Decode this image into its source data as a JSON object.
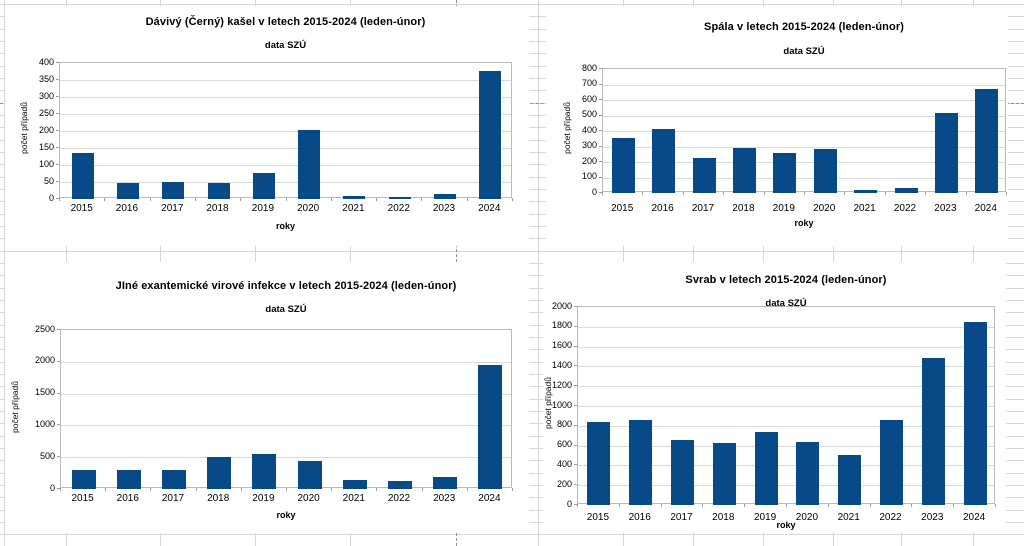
{
  "app": {
    "kind": "spreadsheet with embedded charts",
    "colors": {
      "bar": "#084a87",
      "sheet_grid": "#d6d6d6",
      "page_break": "#8f8f8f",
      "plot_border": "#b9b9b9",
      "chart_gridline": "#d9d9d9",
      "text": "#000000"
    }
  },
  "chart_data": [
    {
      "type": "bar",
      "title": "Dávivý (Černý) kašel v letech 2015-2024 (leden-únor)",
      "subtitle": "data SZÚ",
      "xlabel": "roky",
      "ylabel": "počet případů",
      "categories": [
        "2015",
        "2016",
        "2017",
        "2018",
        "2019",
        "2020",
        "2021",
        "2022",
        "2023",
        "2024"
      ],
      "values": [
        135,
        48,
        49,
        46,
        78,
        203,
        10,
        7,
        14,
        378
      ],
      "ylim": [
        0,
        400
      ],
      "ytick_step": 50,
      "grid": true,
      "legend": "none",
      "bar_color": "#084a87"
    },
    {
      "type": "bar",
      "title": "Spála v letech 2015-2024 (leden-únor)",
      "subtitle": "data SZÚ",
      "xlabel": "roky",
      "ylabel": "počet případů",
      "categories": [
        "2015",
        "2016",
        "2017",
        "2018",
        "2019",
        "2020",
        "2021",
        "2022",
        "2023",
        "2024"
      ],
      "values": [
        355,
        415,
        226,
        291,
        257,
        287,
        20,
        32,
        517,
        674
      ],
      "ylim": [
        0,
        800
      ],
      "ytick_step": 100,
      "grid": true,
      "legend": "none",
      "bar_color": "#084a87"
    },
    {
      "type": "bar",
      "title": "JIné exantemické virové infekce v letech 2015-2024 (leden-únor)",
      "subtitle": "data SZÚ",
      "xlabel": "roky",
      "ylabel": "počet případů",
      "categories": [
        "2015",
        "2016",
        "2017",
        "2018",
        "2019",
        "2020",
        "2021",
        "2022",
        "2023",
        "2024"
      ],
      "values": [
        300,
        295,
        292,
        500,
        555,
        445,
        145,
        120,
        185,
        1945
      ],
      "ylim": [
        0,
        2500
      ],
      "ytick_step": 500,
      "grid": true,
      "legend": "none",
      "bar_color": "#084a87"
    },
    {
      "type": "bar",
      "title": "Svrab v letech 2015-2024 (leden-únor)",
      "subtitle": "data SZÚ",
      "xlabel": "roky",
      "ylabel": "počet případů",
      "categories": [
        "2015",
        "2016",
        "2017",
        "2018",
        "2019",
        "2020",
        "2021",
        "2022",
        "2023",
        "2024"
      ],
      "values": [
        835,
        860,
        655,
        630,
        740,
        635,
        510,
        860,
        1485,
        1845
      ],
      "ylim": [
        0,
        2000
      ],
      "ytick_step": 200,
      "grid": true,
      "legend": "none",
      "bar_color": "#084a87"
    }
  ]
}
